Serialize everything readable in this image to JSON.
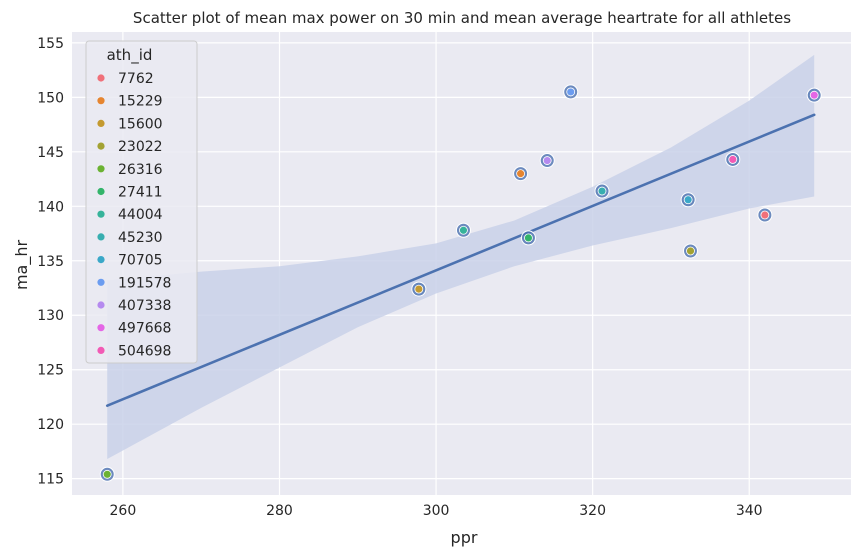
{
  "chart_data": {
    "type": "scatter",
    "title": "Scatter plot of mean max power on 30 min and mean average heartrate for all athletes",
    "xlabel": "ppr",
    "ylabel": "ma_hr",
    "xlim": [
      253.5,
      353.0
    ],
    "ylim": [
      113.5,
      156.0
    ],
    "xticks": [
      260,
      280,
      300,
      320,
      340
    ],
    "yticks": [
      115,
      120,
      125,
      130,
      135,
      140,
      145,
      150,
      155
    ],
    "grid": true,
    "legend": {
      "title": "ath_id",
      "placement": "top-left",
      "entries": [
        {
          "label": "7762",
          "color": "#f0707a"
        },
        {
          "label": "15229",
          "color": "#e68530"
        },
        {
          "label": "15600",
          "color": "#c49a30"
        },
        {
          "label": "23022",
          "color": "#a3a233"
        },
        {
          "label": "26316",
          "color": "#6bb232"
        },
        {
          "label": "27411",
          "color": "#33b46a"
        },
        {
          "label": "44004",
          "color": "#36b39a"
        },
        {
          "label": "45230",
          "color": "#38aeb0"
        },
        {
          "label": "70705",
          "color": "#3aa8c8"
        },
        {
          "label": "191578",
          "color": "#6b9cf0"
        },
        {
          "label": "407338",
          "color": "#b58aef"
        },
        {
          "label": "497668",
          "color": "#e466e6"
        },
        {
          "label": "504698",
          "color": "#f25ab5"
        }
      ]
    },
    "points": [
      {
        "id": "26316",
        "x": 258.0,
        "y": 115.4,
        "color": "#6bb232"
      },
      {
        "id": "15600",
        "x": 297.8,
        "y": 132.4,
        "color": "#c49a30"
      },
      {
        "id": "44004",
        "x": 303.5,
        "y": 137.8,
        "color": "#36b39a"
      },
      {
        "id": "15229",
        "x": 310.8,
        "y": 143.0,
        "color": "#e68530"
      },
      {
        "id": "27411",
        "x": 311.8,
        "y": 137.1,
        "color": "#33b46a"
      },
      {
        "id": "407338",
        "x": 314.2,
        "y": 144.2,
        "color": "#b58aef"
      },
      {
        "id": "191578",
        "x": 317.2,
        "y": 150.5,
        "color": "#6b9cf0"
      },
      {
        "id": "45230",
        "x": 321.2,
        "y": 141.4,
        "color": "#38aeb0"
      },
      {
        "id": "70705",
        "x": 332.2,
        "y": 140.6,
        "color": "#3aa8c8"
      },
      {
        "id": "23022",
        "x": 332.5,
        "y": 135.9,
        "color": "#a3a233"
      },
      {
        "id": "504698",
        "x": 337.9,
        "y": 144.3,
        "color": "#f25ab5"
      },
      {
        "id": "7762",
        "x": 342.0,
        "y": 139.2,
        "color": "#f0707a"
      },
      {
        "id": "497668",
        "x": 348.3,
        "y": 150.2,
        "color": "#e466e6"
      }
    ],
    "regression": {
      "color": "#4c72b0",
      "line": [
        [
          258.0,
          121.7
        ],
        [
          348.3,
          148.4
        ]
      ],
      "ci_band": [
        [
          258.0,
          116.8,
          133.2
        ],
        [
          270.0,
          121.5,
          134.0
        ],
        [
          280.0,
          125.2,
          134.5
        ],
        [
          290.0,
          128.9,
          135.4
        ],
        [
          300.0,
          132.0,
          136.6
        ],
        [
          310.0,
          134.5,
          138.7
        ],
        [
          320.0,
          136.4,
          141.8
        ],
        [
          330.0,
          138.0,
          145.4
        ],
        [
          340.0,
          139.8,
          149.7
        ],
        [
          348.3,
          140.9,
          153.9
        ]
      ]
    },
    "colors": {
      "background": "#eaeaf2",
      "grid": "#ffffff",
      "marker_outer": "#4c72b0",
      "band": "#c9d1e9"
    }
  }
}
